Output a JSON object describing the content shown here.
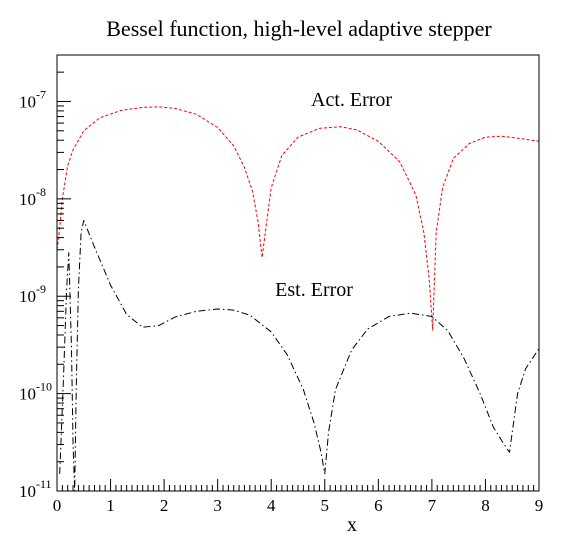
{
  "chart_data": {
    "type": "line",
    "title": "Bessel function, high-level adaptive stepper",
    "xlabel": "x",
    "ylabel": "",
    "xlim": [
      0,
      9
    ],
    "ylim": [
      1e-11,
      3e-07
    ],
    "yscale": "log",
    "grid": false,
    "x_ticks": [
      0,
      1,
      2,
      3,
      4,
      5,
      6,
      7,
      8,
      9
    ],
    "y_ticks": [
      {
        "base": "10",
        "exp": "-11",
        "value": 1e-11
      },
      {
        "base": "10",
        "exp": "-10",
        "value": 1e-10
      },
      {
        "base": "10",
        "exp": "-9",
        "value": 1e-09
      },
      {
        "base": "10",
        "exp": "-8",
        "value": 1e-08
      },
      {
        "base": "10",
        "exp": "-7",
        "value": 1e-07
      }
    ],
    "series": [
      {
        "name": "Act. Error",
        "color": "#ff0000",
        "style": "dashed",
        "x": [
          0.0,
          0.05,
          0.1,
          0.2,
          0.3,
          0.5,
          0.8,
          1.2,
          1.6,
          1.9,
          2.2,
          2.6,
          3.0,
          3.3,
          3.5,
          3.65,
          3.75,
          3.83,
          3.9,
          4.0,
          4.2,
          4.5,
          4.9,
          5.3,
          5.6,
          6.0,
          6.4,
          6.7,
          6.85,
          6.95,
          7.015,
          7.08,
          7.2,
          7.4,
          7.7,
          8.0,
          8.3,
          8.6,
          9.0
        ],
        "y": [
          3e-09,
          5e-09,
          1e-08,
          2.2e-08,
          3.2e-08,
          5e-08,
          6.8e-08,
          8.1e-08,
          8.7e-08,
          8.8e-08,
          8.5e-08,
          7.4e-08,
          5.4e-08,
          3.5e-08,
          2.1e-08,
          1.2e-08,
          6e-09,
          2.5e-09,
          5e-09,
          1.3e-08,
          2.8e-08,
          4.3e-08,
          5.3e-08,
          5.5e-08,
          5.1e-08,
          3.9e-08,
          2.4e-08,
          1.1e-08,
          4.5e-09,
          1.5e-09,
          4.5e-10,
          4.5e-09,
          1.3e-08,
          2.6e-08,
          3.7e-08,
          4.3e-08,
          4.4e-08,
          4.2e-08,
          3.9e-08
        ]
      },
      {
        "name": "Est. Error",
        "color": "#000000",
        "style": "dash-dot",
        "x": [
          0.05,
          0.12,
          0.18,
          0.22,
          0.27,
          0.3,
          0.33,
          0.36,
          0.4,
          0.45,
          0.5,
          0.7,
          1.0,
          1.3,
          1.6,
          1.9,
          2.2,
          2.6,
          3.0,
          3.3,
          3.6,
          4.0,
          4.3,
          4.6,
          4.8,
          4.93,
          5.0,
          5.07,
          5.2,
          5.5,
          5.8,
          6.2,
          6.6,
          7.0,
          7.3,
          7.6,
          7.9,
          8.15,
          8.35,
          8.45,
          8.5,
          8.6,
          8.75,
          9.0
        ],
        "y": [
          1.5e-11,
          1.4e-10,
          1.2e-09,
          2.8e-09,
          3e-10,
          3e-11,
          1e-11,
          1.2e-10,
          1.2e-09,
          4.5e-09,
          6e-09,
          3.2e-09,
          1.3e-09,
          6.5e-10,
          4.8e-10,
          5e-10,
          6.1e-10,
          7e-10,
          7.4e-10,
          7.2e-10,
          6.4e-10,
          4.3e-10,
          2.5e-10,
          1.1e-10,
          5e-11,
          2.5e-11,
          1.5e-11,
          4e-11,
          1.1e-10,
          2.8e-10,
          4.6e-10,
          6.2e-10,
          6.7e-10,
          6.2e-10,
          4.4e-10,
          2.3e-10,
          1e-10,
          4.5e-11,
          3e-11,
          2.5e-11,
          4e-11,
          1e-10,
          1.8e-10,
          2.9e-10
        ]
      }
    ],
    "annotations": [
      {
        "text": "Act. Error",
        "x": 5.5,
        "y": 9e-08
      },
      {
        "text": "Est. Error",
        "x": 4.8,
        "y": 1e-09
      }
    ]
  }
}
